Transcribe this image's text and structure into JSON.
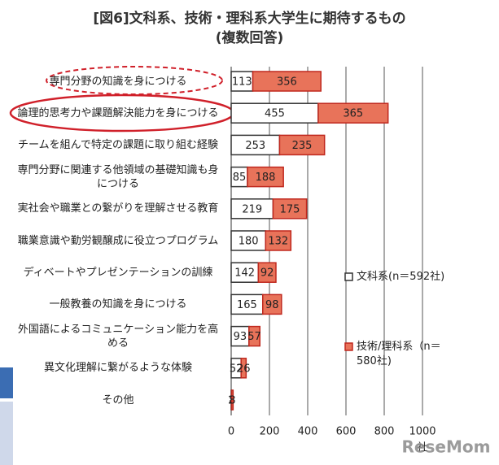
{
  "chart_data": {
    "type": "stacked-bar-horizontal",
    "title": "[図6]文科系、技術・理科系大学生に期待するもの",
    "subtitle": "(複数回答)",
    "categories": [
      "専門分野の知識を身につける",
      "論理的思考力や課題解決能力を身につける",
      "チームを組んで特定の課題に取り組む経験",
      "専門分野に関連する他領域の基礎知識も身につける",
      "実社会や職業との繋がりを理解させる教育",
      "職業意識や勤労観醸成に役立つプログラム",
      "ディベートやプレゼンテーションの訓練",
      "一般教養の知識を身につける",
      "外国語によるコミュニケーション能力を高める",
      "異文化理解に繋がるような体験",
      "その他"
    ],
    "series": [
      {
        "name": "文科系(n＝592社)",
        "color": "#ffffff",
        "values": [
          113,
          455,
          253,
          85,
          219,
          180,
          142,
          165,
          93,
          52,
          2
        ]
      },
      {
        "name": "技術/理科系（n＝580社)",
        "color": "#e8735a",
        "values": [
          356,
          365,
          235,
          188,
          175,
          132,
          92,
          98,
          57,
          26,
          8
        ]
      }
    ],
    "xlim": [
      0,
      1000
    ],
    "xticks": [
      0,
      200,
      400,
      600,
      800,
      1000
    ],
    "x_unit": "社",
    "grid": true,
    "legend": "right",
    "watermark": "ReseMom"
  }
}
